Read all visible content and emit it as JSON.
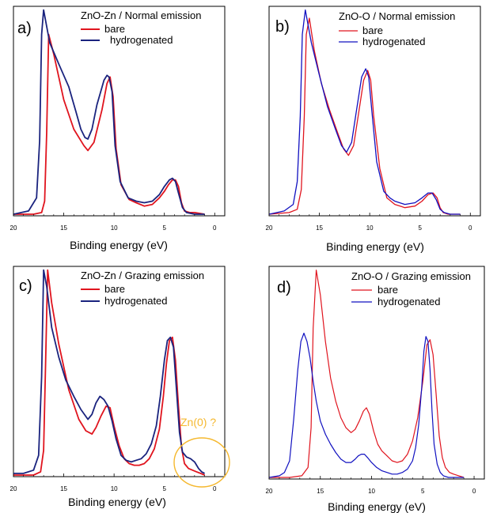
{
  "chart_data": [
    {
      "type": "line",
      "panel_label": "a)",
      "title": "ZnO-Zn / Normal emission",
      "xlabel": "Binding energy (eV)",
      "xlim": [
        20,
        -1
      ],
      "x_reversed": true,
      "xticks": [
        "20",
        "15",
        "10",
        "5",
        "0"
      ],
      "y_axis_ticks": false,
      "series": [
        {
          "name": "bare",
          "color": "#e0141e",
          "x": [
            20,
            18,
            17.2,
            16.9,
            16.7,
            16.5,
            16.0,
            15.0,
            14.0,
            13.0,
            12.6,
            12.0,
            11.2,
            10.7,
            10.4,
            10.1,
            9.8,
            9.3,
            8.5,
            7.8,
            7.0,
            6.2,
            5.5,
            5.0,
            4.6,
            4.2,
            3.9,
            3.6,
            3.3,
            3.0,
            2.5,
            2.0,
            1.0
          ],
          "y": [
            0.0,
            0.0,
            0.01,
            0.08,
            0.5,
            1.1,
            0.98,
            0.7,
            0.52,
            0.42,
            0.39,
            0.44,
            0.64,
            0.8,
            0.84,
            0.72,
            0.4,
            0.18,
            0.09,
            0.07,
            0.05,
            0.06,
            0.1,
            0.14,
            0.18,
            0.21,
            0.21,
            0.17,
            0.07,
            0.02,
            0.01,
            0.01,
            0.0
          ]
        },
        {
          "name": "hydrogenated",
          "color": "#1a237e",
          "x": [
            20,
            18.5,
            17.7,
            17.4,
            17.2,
            17.0,
            16.4,
            15.5,
            14.5,
            13.8,
            13.3,
            12.9,
            12.6,
            12.2,
            11.7,
            11.0,
            10.7,
            10.5,
            10.2,
            9.9,
            9.4,
            8.6,
            7.8,
            7.0,
            6.2,
            5.5,
            5.0,
            4.5,
            4.2,
            3.9,
            3.6,
            3.2,
            2.8,
            2.0,
            1.0
          ],
          "y": [
            0.0,
            0.02,
            0.1,
            0.45,
            1.1,
            1.25,
            1.05,
            0.92,
            0.78,
            0.63,
            0.52,
            0.47,
            0.46,
            0.52,
            0.67,
            0.82,
            0.85,
            0.84,
            0.75,
            0.42,
            0.2,
            0.1,
            0.08,
            0.07,
            0.08,
            0.12,
            0.17,
            0.21,
            0.22,
            0.2,
            0.13,
            0.04,
            0.01,
            0.0,
            0.0
          ]
        }
      ]
    },
    {
      "type": "line",
      "panel_label": "b)",
      "title": "ZnO-O / Normal emission",
      "xlabel": "Binding energy (eV)",
      "xlim": [
        20,
        -1
      ],
      "x_reversed": true,
      "xticks": [
        "20",
        "15",
        "10",
        "5",
        "0"
      ],
      "y_axis_ticks": false,
      "series": [
        {
          "name": "bare",
          "color": "#e0141e",
          "x": [
            20,
            18,
            17.2,
            16.8,
            16.5,
            16.3,
            16.0,
            15.5,
            14.8,
            14.0,
            13.2,
            12.6,
            12.1,
            11.6,
            11.1,
            10.6,
            10.2,
            9.9,
            9.6,
            9.0,
            8.3,
            7.5,
            6.5,
            5.5,
            4.8,
            4.2,
            3.7,
            3.3,
            3.0,
            2.7,
            2.2,
            1.5,
            1.0
          ],
          "y": [
            0.0,
            0.01,
            0.03,
            0.15,
            0.6,
            1.1,
            1.2,
            1.0,
            0.8,
            0.64,
            0.5,
            0.4,
            0.36,
            0.42,
            0.62,
            0.82,
            0.88,
            0.82,
            0.6,
            0.28,
            0.1,
            0.06,
            0.04,
            0.05,
            0.08,
            0.12,
            0.13,
            0.1,
            0.04,
            0.01,
            0.0,
            0.0,
            0.0
          ]
        },
        {
          "name": "hydrogenated",
          "color": "#1010c0",
          "x": [
            20,
            18.5,
            17.6,
            17.2,
            16.9,
            16.7,
            16.4,
            15.8,
            15.0,
            14.2,
            13.4,
            12.8,
            12.3,
            11.8,
            11.3,
            10.8,
            10.4,
            10.1,
            9.8,
            9.3,
            8.6,
            8.0,
            7.5,
            6.5,
            5.5,
            4.8,
            4.2,
            3.8,
            3.4,
            3.0,
            2.6,
            2.0,
            1.0
          ],
          "y": [
            0.0,
            0.02,
            0.06,
            0.2,
            0.6,
            1.1,
            1.25,
            1.05,
            0.85,
            0.66,
            0.52,
            0.42,
            0.38,
            0.44,
            0.64,
            0.84,
            0.89,
            0.84,
            0.64,
            0.32,
            0.14,
            0.1,
            0.08,
            0.06,
            0.07,
            0.1,
            0.13,
            0.13,
            0.09,
            0.03,
            0.01,
            0.0,
            0.0
          ]
        }
      ]
    },
    {
      "type": "line",
      "panel_label": "c)",
      "title": "ZnO-Zn / Grazing emission",
      "xlabel": "Binding energy (eV)",
      "xlim": [
        20,
        -1
      ],
      "x_reversed": true,
      "xticks": [
        "20",
        "15",
        "10",
        "5",
        "0"
      ],
      "y_axis_ticks": false,
      "annotation": "Zn(0) ?",
      "annotation_color": "#f5b82e",
      "series": [
        {
          "name": "bare",
          "color": "#e0141e",
          "x": [
            20,
            18,
            17.3,
            17.0,
            16.8,
            16.6,
            16.2,
            15.5,
            14.5,
            13.5,
            12.8,
            12.2,
            11.8,
            11.3,
            10.8,
            10.4,
            10.0,
            9.5,
            9.0,
            8.5,
            8.0,
            7.5,
            7.0,
            6.5,
            6.0,
            5.5,
            5.1,
            4.8,
            4.5,
            4.2,
            3.9,
            3.6,
            3.3,
            3.0,
            2.6,
            2.2,
            1.8,
            1.4,
            1.0
          ],
          "y": [
            0.0,
            0.0,
            0.02,
            0.15,
            0.7,
            1.25,
            1.05,
            0.8,
            0.52,
            0.34,
            0.27,
            0.25,
            0.29,
            0.36,
            0.42,
            0.41,
            0.3,
            0.18,
            0.1,
            0.07,
            0.06,
            0.06,
            0.07,
            0.1,
            0.16,
            0.28,
            0.48,
            0.68,
            0.82,
            0.84,
            0.7,
            0.42,
            0.17,
            0.07,
            0.04,
            0.03,
            0.02,
            0.01,
            0.0
          ]
        },
        {
          "name": "hydrogenated",
          "color": "#1a237e",
          "x": [
            20,
            19.0,
            18.0,
            17.5,
            17.2,
            17.0,
            16.7,
            16.2,
            15.5,
            14.8,
            14.0,
            13.3,
            12.6,
            12.2,
            11.8,
            11.4,
            11.0,
            10.6,
            10.2,
            9.8,
            9.3,
            8.8,
            8.3,
            7.8,
            7.3,
            6.8,
            6.3,
            5.8,
            5.4,
            5.0,
            4.7,
            4.4,
            4.1,
            3.8,
            3.5,
            3.2,
            2.8,
            2.4,
            2.0,
            1.6,
            1.3,
            1.0
          ],
          "y": [
            0.01,
            0.01,
            0.03,
            0.12,
            0.6,
            1.25,
            1.15,
            0.9,
            0.72,
            0.58,
            0.48,
            0.4,
            0.34,
            0.37,
            0.44,
            0.48,
            0.46,
            0.42,
            0.33,
            0.22,
            0.12,
            0.09,
            0.08,
            0.09,
            0.1,
            0.13,
            0.19,
            0.3,
            0.48,
            0.7,
            0.82,
            0.84,
            0.78,
            0.52,
            0.26,
            0.14,
            0.11,
            0.1,
            0.08,
            0.04,
            0.02,
            0.01
          ]
        }
      ]
    },
    {
      "type": "line",
      "panel_label": "d)",
      "title": "ZnO-O / Grazing emission",
      "xlabel": "Binding energy (eV)",
      "xlim": [
        20,
        -1
      ],
      "x_reversed": true,
      "xticks": [
        "20",
        "15",
        "10",
        "5",
        "0"
      ],
      "y_axis_ticks": false,
      "series": [
        {
          "name": "bare",
          "color": "#e0141e",
          "x": [
            20,
            18,
            16.8,
            16.2,
            15.9,
            15.7,
            15.4,
            15.0,
            14.5,
            14.0,
            13.5,
            13.0,
            12.5,
            12.0,
            11.6,
            11.2,
            10.8,
            10.5,
            10.2,
            9.8,
            9.4,
            9.0,
            8.5,
            8.0,
            7.5,
            7.0,
            6.5,
            6.0,
            5.5,
            5.0,
            4.6,
            4.3,
            4.0,
            3.7,
            3.4,
            3.1,
            2.8,
            2.4,
            2.0,
            1.5,
            1.0
          ],
          "y": [
            0.0,
            0.0,
            0.01,
            0.06,
            0.3,
            0.9,
            1.25,
            1.1,
            0.82,
            0.6,
            0.46,
            0.36,
            0.3,
            0.27,
            0.29,
            0.34,
            0.4,
            0.42,
            0.38,
            0.28,
            0.2,
            0.16,
            0.13,
            0.1,
            0.09,
            0.1,
            0.14,
            0.22,
            0.36,
            0.58,
            0.8,
            0.83,
            0.74,
            0.5,
            0.25,
            0.12,
            0.06,
            0.03,
            0.02,
            0.01,
            0.0
          ]
        },
        {
          "name": "hydrogenated",
          "color": "#1010c0",
          "x": [
            20,
            19,
            18.5,
            18.0,
            17.6,
            17.2,
            16.9,
            16.6,
            16.3,
            16.0,
            15.7,
            15.4,
            15.0,
            14.5,
            14.0,
            13.5,
            13.0,
            12.5,
            12.0,
            11.6,
            11.3,
            11.0,
            10.7,
            10.4,
            10.0,
            9.5,
            9.0,
            8.5,
            8.0,
            7.5,
            7.0,
            6.5,
            6.0,
            5.7,
            5.4,
            5.1,
            4.9,
            4.7,
            4.5,
            4.3,
            4.1,
            3.9,
            3.6,
            3.3,
            3.0,
            2.5,
            2.0,
            1.0
          ],
          "y": [
            0.0,
            0.01,
            0.03,
            0.1,
            0.35,
            0.65,
            0.82,
            0.87,
            0.82,
            0.72,
            0.58,
            0.46,
            0.34,
            0.26,
            0.2,
            0.15,
            0.11,
            0.09,
            0.09,
            0.11,
            0.13,
            0.14,
            0.14,
            0.12,
            0.09,
            0.06,
            0.04,
            0.03,
            0.02,
            0.02,
            0.03,
            0.05,
            0.1,
            0.18,
            0.32,
            0.55,
            0.76,
            0.85,
            0.82,
            0.65,
            0.4,
            0.2,
            0.08,
            0.03,
            0.01,
            0.0,
            0.0,
            0.0
          ]
        }
      ]
    }
  ]
}
